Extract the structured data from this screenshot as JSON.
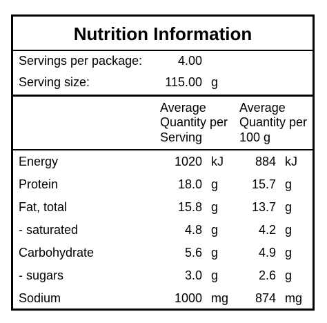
{
  "title": "Nutrition Information",
  "servings_per_package": {
    "label": "Servings per package:",
    "value": "4.00"
  },
  "serving_size": {
    "label": "Serving size:",
    "value": "115.00",
    "unit": "g"
  },
  "columns": {
    "per_serving": [
      "Average",
      "Quantity per",
      "Serving"
    ],
    "per_100g": [
      "Average",
      "Quantity per",
      "100 g"
    ]
  },
  "rows": [
    {
      "name": "Energy",
      "serving": "1020",
      "serving_unit": "kJ",
      "per100": "884",
      "per100_unit": "kJ"
    },
    {
      "name": "Protein",
      "serving": "18.0",
      "serving_unit": "g",
      "per100": "15.7",
      "per100_unit": "g"
    },
    {
      "name": "Fat, total",
      "serving": "15.8",
      "serving_unit": "g",
      "per100": "13.7",
      "per100_unit": "g"
    },
    {
      "name": "- saturated",
      "serving": "4.8",
      "serving_unit": "g",
      "per100": "4.2",
      "per100_unit": "g"
    },
    {
      "name": "Carbohydrate",
      "serving": "5.6",
      "serving_unit": "g",
      "per100": "4.9",
      "per100_unit": "g"
    },
    {
      "name": "- sugars",
      "serving": "3.0",
      "serving_unit": "g",
      "per100": "2.6",
      "per100_unit": "g"
    },
    {
      "name": "Sodium",
      "serving": "1000",
      "serving_unit": "mg",
      "per100": "874",
      "per100_unit": "mg"
    }
  ]
}
